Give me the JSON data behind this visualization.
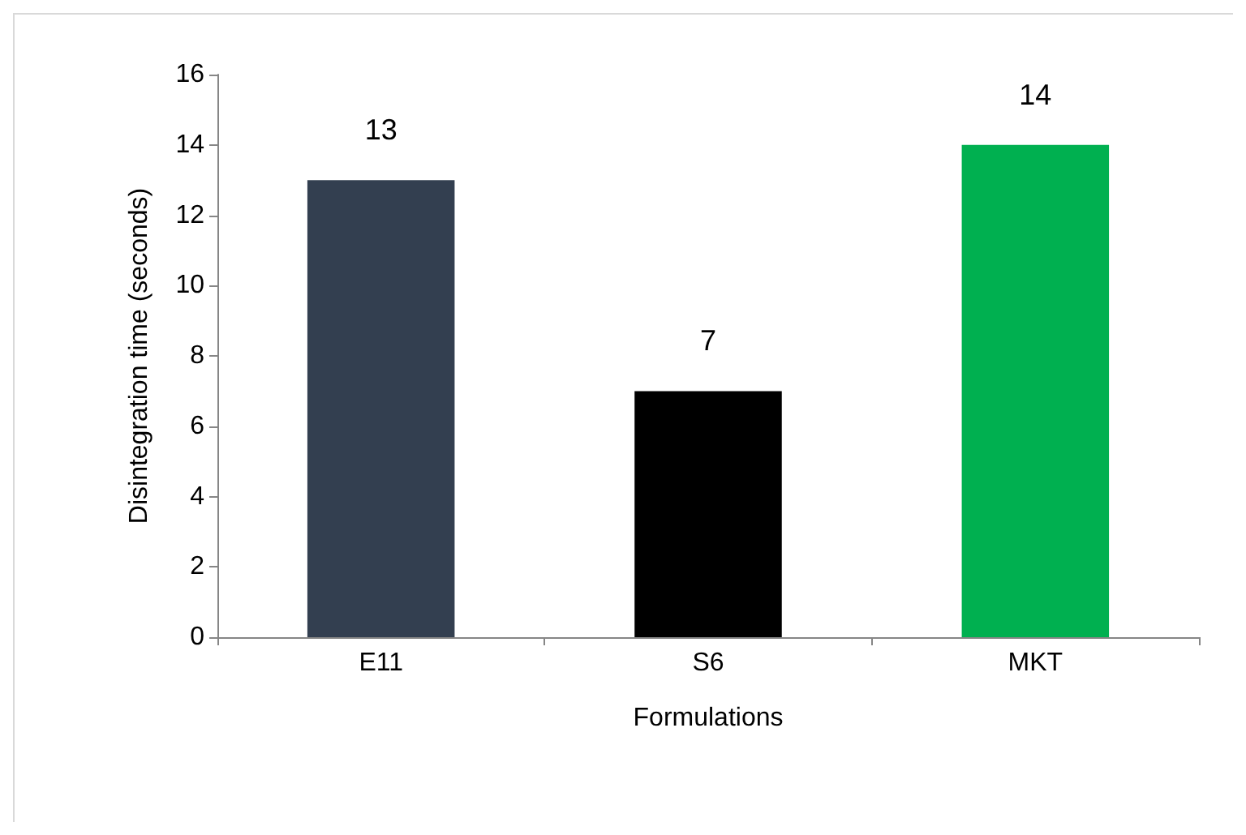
{
  "chart_data": {
    "type": "bar",
    "xlabel": "Formulations",
    "ylabel": "Disintegration time (seconds)",
    "categories": [
      "E11",
      "S6",
      "MKT"
    ],
    "values": [
      13,
      7,
      14
    ],
    "colors": [
      "#333f50",
      "#000000",
      "#00b050"
    ],
    "ylim": [
      0,
      16
    ],
    "yticks": [
      0,
      2,
      4,
      6,
      8,
      10,
      12,
      14,
      16
    ],
    "grid": false,
    "data_labels": true
  }
}
